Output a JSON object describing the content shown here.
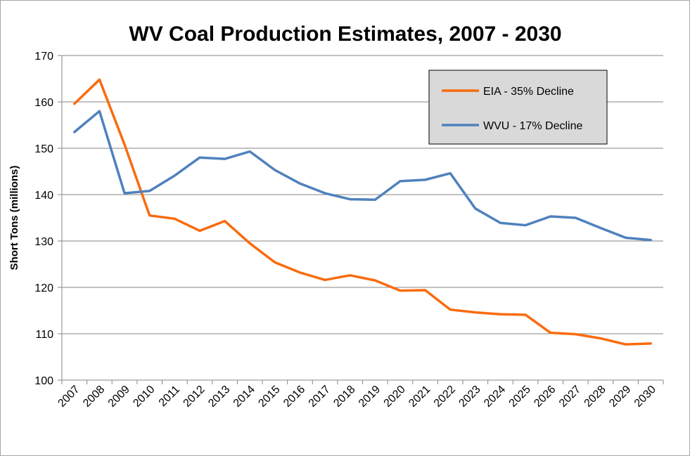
{
  "chart_data": {
    "type": "line",
    "title": "WV Coal Production Estimates, 2007 - 2030",
    "ylabel": "Short Tons (millions)",
    "xlabel": "",
    "ylim": [
      100,
      170
    ],
    "yticks": [
      100,
      110,
      120,
      130,
      140,
      150,
      160,
      170
    ],
    "grid": true,
    "legend_position": "top-right",
    "categories": [
      "2007",
      "2008",
      "2009",
      "2010",
      "2011",
      "2012",
      "2013",
      "2014",
      "2015",
      "2016",
      "2017",
      "2018",
      "2019",
      "2020",
      "2021",
      "2022",
      "2023",
      "2024",
      "2025",
      "2026",
      "2027",
      "2028",
      "2029",
      "2030"
    ],
    "series": [
      {
        "name": "EIA - 35% Decline",
        "color": "#f96b0e",
        "values": [
          159.6,
          164.8,
          150.8,
          135.5,
          134.8,
          132.2,
          134.3,
          129.5,
          125.4,
          123.2,
          121.6,
          122.6,
          121.5,
          119.3,
          119.4,
          115.2,
          114.6,
          114.2,
          114.1,
          110.2,
          109.9,
          109.0,
          107.7,
          107.9
        ]
      },
      {
        "name": "WVU - 17% Decline",
        "color": "#4f81bd",
        "values": [
          153.5,
          158.0,
          140.3,
          140.8,
          144.1,
          148.0,
          147.7,
          149.3,
          145.3,
          142.4,
          140.3,
          139.0,
          138.9,
          142.9,
          143.2,
          144.6,
          137.0,
          133.9,
          133.4,
          135.3,
          135.0,
          132.8,
          130.7,
          130.2
        ]
      }
    ]
  }
}
